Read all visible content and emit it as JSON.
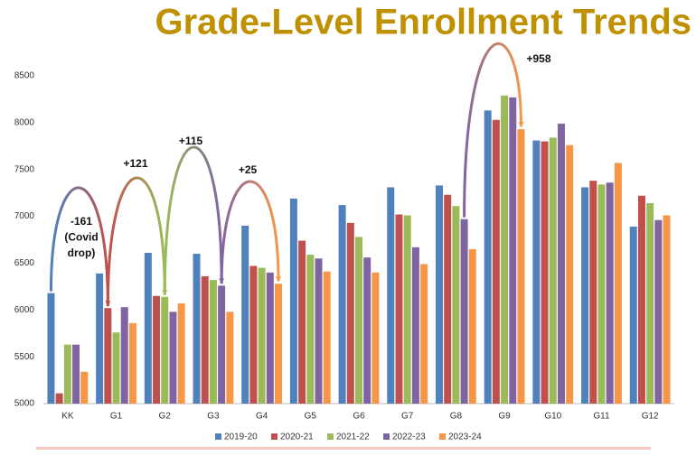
{
  "chart_data": {
    "type": "bar",
    "title": "Grade-Level Enrollment Trends",
    "categories": [
      "KK",
      "G1",
      "G2",
      "G3",
      "G4",
      "G5",
      "G6",
      "G7",
      "G8",
      "G9",
      "G10",
      "G11",
      "G12"
    ],
    "series": [
      {
        "name": "2019-20",
        "color": "#4f81bd",
        "values": [
          6180,
          6390,
          6610,
          6600,
          6900,
          7190,
          7120,
          7310,
          7330,
          8130,
          7810,
          7310,
          6890
        ]
      },
      {
        "name": "2020-21",
        "color": "#c0504d",
        "values": [
          5110,
          6020,
          6150,
          6360,
          6470,
          6740,
          6930,
          7020,
          7230,
          8030,
          7800,
          7380,
          7220
        ]
      },
      {
        "name": "2021-22",
        "color": "#9bbb59",
        "values": [
          5630,
          5760,
          6140,
          6320,
          6450,
          6590,
          6780,
          7010,
          7110,
          8290,
          7840,
          7340,
          7140
        ]
      },
      {
        "name": "2022-23",
        "color": "#8064a2",
        "values": [
          5630,
          6030,
          5980,
          6260,
          6400,
          6550,
          6560,
          6670,
          6970,
          8270,
          7990,
          7360,
          6960
        ]
      },
      {
        "name": "2023-24",
        "color": "#f79646",
        "values": [
          5340,
          5860,
          6070,
          5980,
          6280,
          6410,
          6400,
          6490,
          6650,
          7930,
          7760,
          7570,
          7010
        ]
      }
    ],
    "ylim": [
      5000,
      8500
    ],
    "yticks": [
      5000,
      5500,
      6000,
      6500,
      7000,
      7500,
      8000,
      8500
    ],
    "grid": false,
    "legend": "bottom",
    "annotations": [
      {
        "lines": [
          "-161",
          "(Covid",
          "drop)"
        ]
      },
      {
        "lines": [
          "+121"
        ]
      },
      {
        "lines": [
          "+115"
        ]
      },
      {
        "lines": [
          "+25"
        ]
      },
      {
        "lines": [
          "+958"
        ]
      }
    ]
  }
}
